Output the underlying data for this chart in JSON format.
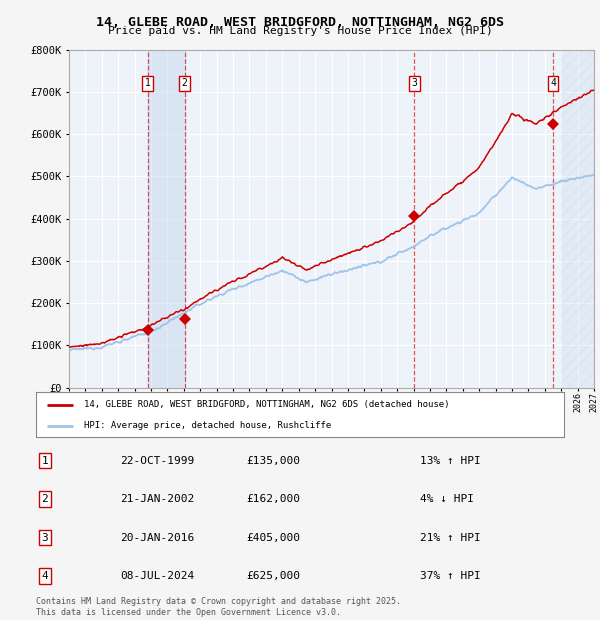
{
  "title": "14, GLEBE ROAD, WEST BRIDGFORD, NOTTINGHAM, NG2 6DS",
  "subtitle": "Price paid vs. HM Land Registry's House Price Index (HPI)",
  "ylabel_ticks": [
    "£0",
    "£100K",
    "£200K",
    "£300K",
    "£400K",
    "£500K",
    "£600K",
    "£700K",
    "£800K"
  ],
  "ytick_values": [
    0,
    100000,
    200000,
    300000,
    400000,
    500000,
    600000,
    700000,
    800000
  ],
  "xmin": 1995,
  "xmax": 2027,
  "ymin": 0,
  "ymax": 800000,
  "transactions": [
    {
      "id": 1,
      "date": "22-OCT-1999",
      "year": 1999.8,
      "price": 135000,
      "pct": "13%",
      "dir": "↑"
    },
    {
      "id": 2,
      "date": "21-JAN-2002",
      "year": 2002.05,
      "price": 162000,
      "pct": "4%",
      "dir": "↓"
    },
    {
      "id": 3,
      "date": "20-JAN-2016",
      "year": 2016.05,
      "price": 405000,
      "pct": "21%",
      "dir": "↑"
    },
    {
      "id": 4,
      "date": "08-JUL-2024",
      "year": 2024.5,
      "price": 625000,
      "pct": "37%",
      "dir": "↑"
    }
  ],
  "legend_label_red": "14, GLEBE ROAD, WEST BRIDGFORD, NOTTINGHAM, NG2 6DS (detached house)",
  "legend_label_blue": "HPI: Average price, detached house, Rushcliffe",
  "footer_text": "Contains HM Land Registry data © Crown copyright and database right 2025.\nThis data is licensed under the Open Government Licence v3.0.",
  "bg_color": "#eef3fa",
  "grid_color": "#ffffff",
  "line_color_red": "#cc0000",
  "line_color_blue": "#a0c4e8",
  "marker_color": "#cc0000",
  "shade_color": "#c8d8f0",
  "hatch_color": "#c8d8f0",
  "fig_bg": "#f5f5f5"
}
